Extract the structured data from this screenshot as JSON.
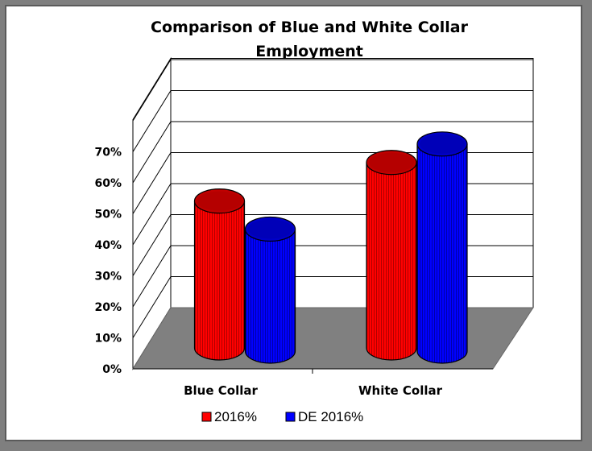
{
  "chart_data": {
    "type": "bar",
    "style": "3d-cylinder",
    "title_lines": [
      "Comparison of Blue and White Collar",
      "Employment"
    ],
    "categories": [
      "Blue Collar",
      "White Collar"
    ],
    "series": [
      {
        "name": "2016%",
        "color": "#ff0000",
        "values": [
          0.51,
          0.65
        ]
      },
      {
        "name": "DE 2016%",
        "color": "#0000ff",
        "values": [
          0.43,
          0.72
        ]
      }
    ],
    "y_ticks": [
      "0%",
      "10%",
      "20%",
      "30%",
      "40%",
      "50%",
      "60%",
      "70%"
    ],
    "ylim": [
      0,
      0.7
    ],
    "gridlines": true,
    "legend_position": "bottom",
    "colors": {
      "floor": "#808080",
      "wall": "#ffffff",
      "frame_bg": "#7f7f7f"
    }
  }
}
